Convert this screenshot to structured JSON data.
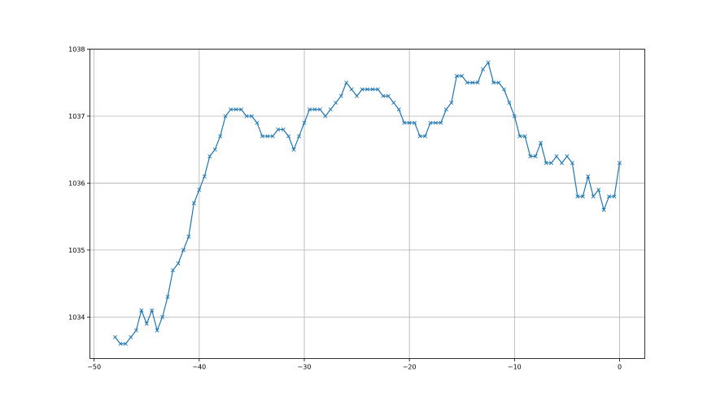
{
  "chart_data": {
    "type": "line",
    "title": "",
    "xlabel": "",
    "ylabel": "",
    "xlim": [
      -50.4,
      2.4
    ],
    "ylim": [
      1033.38,
      1038.0
    ],
    "grid": true,
    "marker": "x",
    "color": "#1f77b4",
    "xticks": [
      -50,
      -40,
      -30,
      -20,
      -10,
      0
    ],
    "yticks": [
      1034,
      1035,
      1036,
      1037,
      1038
    ],
    "x_start": -48,
    "x_step": 0.5,
    "y": [
      1033.7,
      1033.6,
      1033.6,
      1033.7,
      1033.8,
      1034.1,
      1033.9,
      1034.1,
      1033.8,
      1034.0,
      1034.3,
      1034.7,
      1034.8,
      1035.0,
      1035.2,
      1035.7,
      1035.9,
      1036.1,
      1036.4,
      1036.5,
      1036.7,
      1037.0,
      1037.1,
      1037.1,
      1037.1,
      1037.0,
      1037.0,
      1036.9,
      1036.7,
      1036.7,
      1036.7,
      1036.8,
      1036.8,
      1036.7,
      1036.5,
      1036.7,
      1036.9,
      1037.1,
      1037.1,
      1037.1,
      1037.0,
      1037.1,
      1037.2,
      1037.3,
      1037.5,
      1037.4,
      1037.3,
      1037.4,
      1037.4,
      1037.4,
      1037.4,
      1037.3,
      1037.3,
      1037.2,
      1037.1,
      1036.9,
      1036.9,
      1036.9,
      1036.7,
      1036.7,
      1036.9,
      1036.9,
      1036.9,
      1037.1,
      1037.2,
      1037.6,
      1037.6,
      1037.5,
      1037.5,
      1037.5,
      1037.7,
      1037.8,
      1037.5,
      1037.5,
      1037.4,
      1037.2,
      1037.0,
      1036.7,
      1036.7,
      1036.4,
      1036.4,
      1036.6,
      1036.3,
      1036.3,
      1036.4,
      1036.3,
      1036.4,
      1036.3,
      1035.8,
      1035.8,
      1036.1,
      1035.8,
      1035.9,
      1035.6,
      1035.8,
      1035.8,
      1036.3
    ]
  }
}
